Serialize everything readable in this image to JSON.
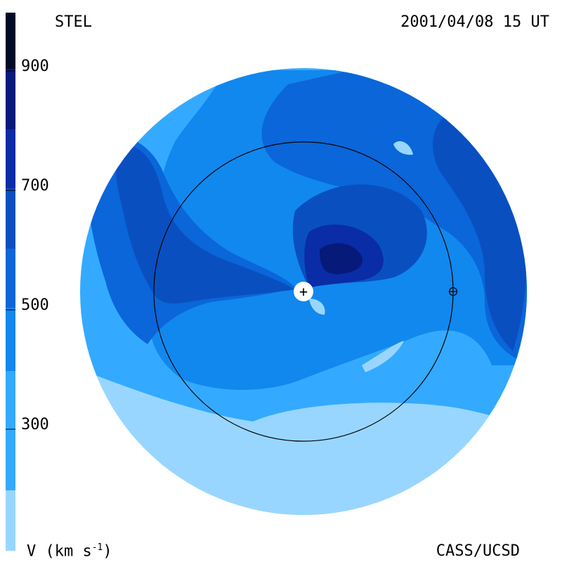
{
  "header": {
    "instrument": "STEL",
    "timestamp": "2001/04/08 15 UT"
  },
  "footer": {
    "units_label": "V (km s",
    "units_exp": "-1",
    "units_close": ")",
    "credit": "CASS/UCSD"
  },
  "colorbar": {
    "ticks": [
      {
        "label": "900"
      },
      {
        "label": "700"
      },
      {
        "label": "500"
      },
      {
        "label": "300"
      }
    ],
    "bands": [
      {
        "max_speed": 200,
        "color": "#99d6ff"
      },
      {
        "max_speed": 300,
        "color": "#33aaff"
      },
      {
        "max_speed": 400,
        "color": "#1188ee"
      },
      {
        "max_speed": 500,
        "color": "#0a66d9"
      },
      {
        "max_speed": 600,
        "color": "#0a4fc0"
      },
      {
        "max_speed": 700,
        "color": "#0a2ca6"
      },
      {
        "max_speed": 800,
        "color": "#061a7a"
      },
      {
        "max_speed": 900,
        "color": "#04104f"
      },
      {
        "max_speed": 1000,
        "color": "#020a2a"
      }
    ]
  },
  "colors": {
    "light": "#99d6ff",
    "c1": "#33aaff",
    "c2": "#1188ee",
    "c3": "#0a66d9",
    "c4": "#0a4fc0",
    "c5": "#0a2ca6",
    "c6": "#061a7a",
    "ink": "#000000"
  },
  "markers": {
    "sun": "+",
    "earth": "⊕"
  }
}
